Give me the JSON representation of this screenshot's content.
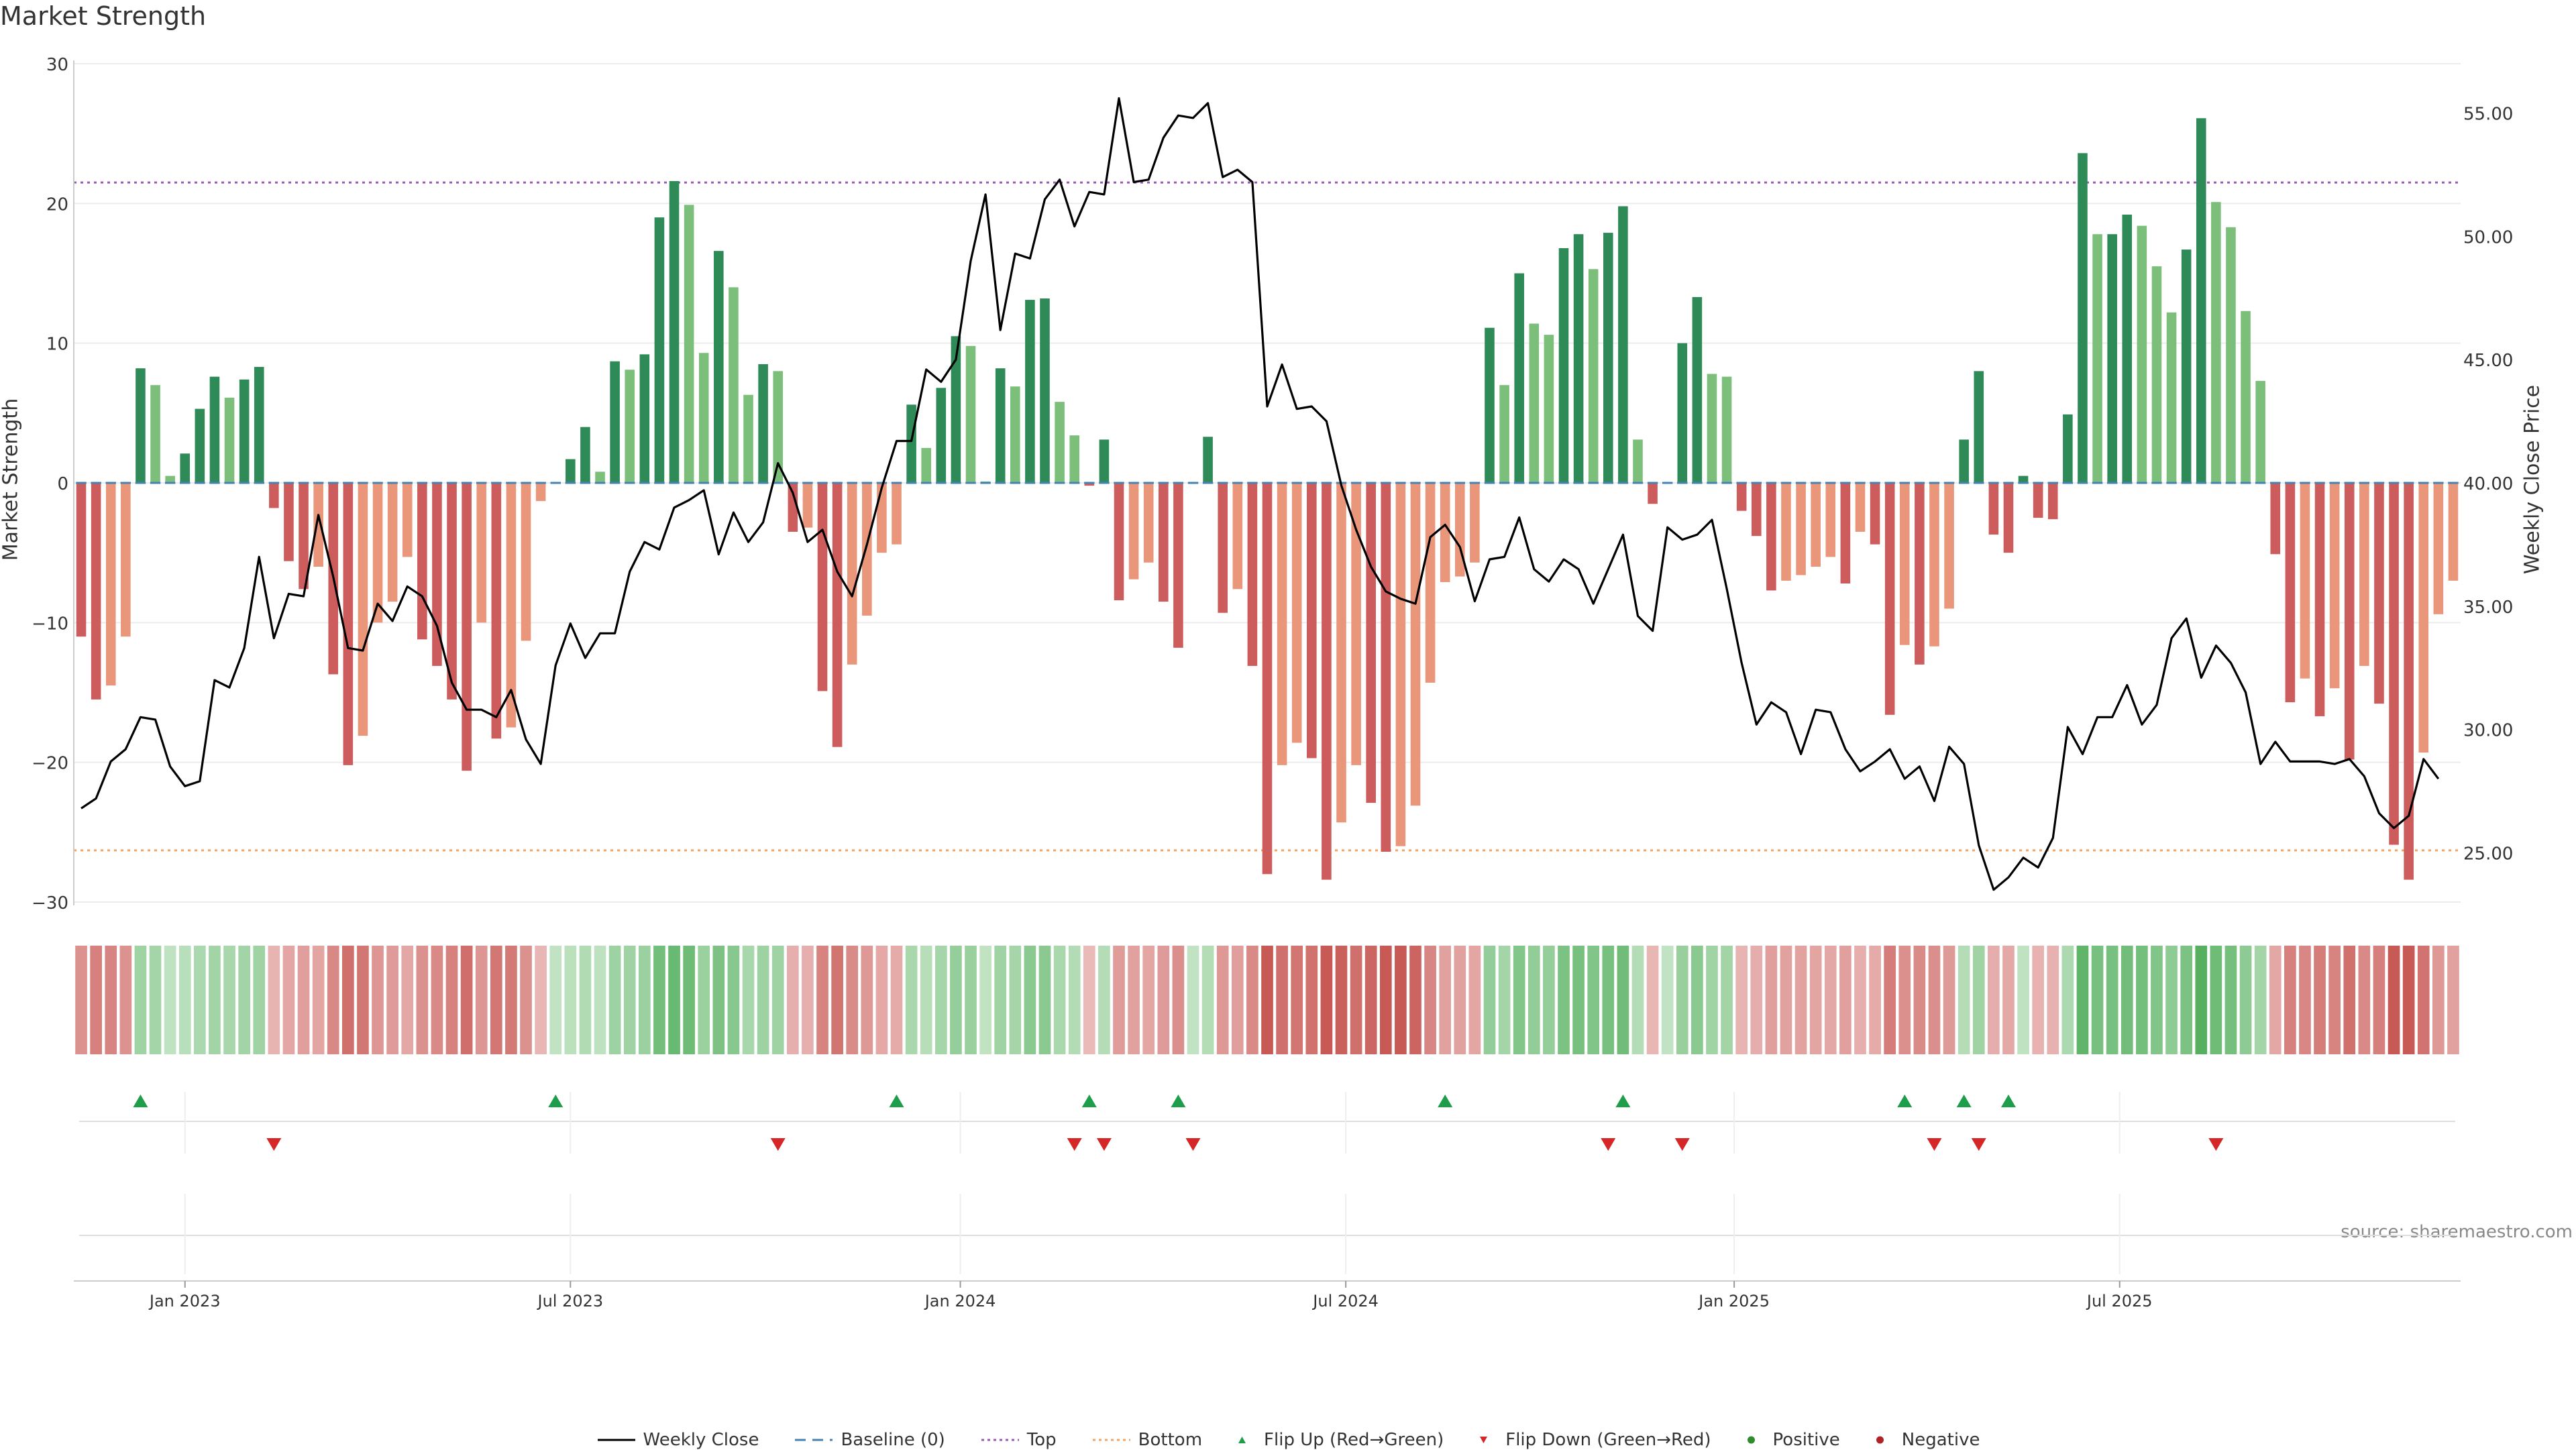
{
  "chart_data": {
    "type": "bar",
    "title": "Market Strength",
    "ylabel": "Market Strength",
    "y2label": "Weekly Close Price",
    "ylim": [
      -30,
      30
    ],
    "y2lim": [
      23,
      57
    ],
    "yticks": [
      -30,
      -20,
      -10,
      0,
      10,
      20,
      30
    ],
    "y2ticks": [
      "25.00",
      "30.00",
      "35.00",
      "40.00",
      "45.00",
      "50.00",
      "55.00"
    ],
    "y2tick_values": [
      25,
      30,
      35,
      40,
      45,
      50,
      55
    ],
    "top_level": 21.5,
    "bottom_level": -26.3,
    "x_ticks": [
      {
        "label": "Jan 2023",
        "week": 7.5
      },
      {
        "label": "Jul 2023",
        "week": 33.5
      },
      {
        "label": "Jan 2024",
        "week": 59.8
      },
      {
        "label": "Jul 2024",
        "week": 85.8
      },
      {
        "label": "Jan 2025",
        "week": 112
      },
      {
        "label": "Jul 2025",
        "week": 138
      }
    ],
    "strength": [
      -11,
      -15.5,
      -14.5,
      -11,
      8.2,
      7,
      0.5,
      2.1,
      5.3,
      7.6,
      6.1,
      7.4,
      8.3,
      -1.8,
      -5.6,
      -7.6,
      -6,
      -13.7,
      -20.2,
      -18.1,
      -10,
      -8.5,
      -5.3,
      -11.2,
      -13.1,
      -15.5,
      -20.6,
      -10,
      -18.3,
      -17.5,
      -11.3,
      -1.3,
      0,
      1.7,
      4,
      0.8,
      8.7,
      8.1,
      9.2,
      19,
      21.6,
      19.9,
      9.3,
      16.6,
      14,
      6.3,
      8.5,
      8,
      -3.5,
      -3.2,
      -14.9,
      -18.9,
      -13,
      -9.5,
      -5,
      -4.4,
      5.6,
      2.5,
      6.8,
      10.5,
      9.8,
      0.1,
      8.2,
      6.9,
      13.1,
      13.2,
      5.8,
      3.4,
      -0.2,
      3.1,
      -8.4,
      -6.9,
      -5.7,
      -8.5,
      -11.8,
      0,
      3.3,
      -9.3,
      -7.6,
      -13.1,
      -28,
      -20.2,
      -18.6,
      -19.7,
      -28.4,
      -24.3,
      -20.2,
      -22.9,
      -26.4,
      -26,
      -23.1,
      -14.3,
      -7.1,
      -6.7,
      -5.7,
      11.1,
      7,
      15,
      11.4,
      10.6,
      16.8,
      17.8,
      15.3,
      17.9,
      19.8,
      3.1,
      -1.5,
      0,
      10,
      13.3,
      7.8,
      7.6,
      -2,
      -3.8,
      -7.7,
      -7,
      -6.6,
      -6,
      -5.3,
      -7.2,
      -3.5,
      -4.4,
      -16.6,
      -11.6,
      -13,
      -11.7,
      -9,
      3.1,
      8,
      -3.7,
      -5,
      0.5,
      -2.5,
      -2.6,
      4.9,
      23.6,
      17.8,
      17.8,
      19.2,
      18.4,
      15.5,
      12.2,
      16.7,
      26.1,
      20.1,
      18.3,
      12.3,
      7.3,
      -5.1,
      -15.7,
      -14,
      -16.7,
      -14.7,
      -19.8,
      -13.1,
      -15.8,
      -25.9,
      -28.4,
      -19.3,
      -9.4,
      -7
    ],
    "close": [
      26.8,
      27.2,
      28.7,
      29.2,
      30.5,
      30.4,
      28.5,
      27.7,
      27.9,
      32,
      31.7,
      33.3,
      37,
      33.7,
      35.5,
      35.4,
      38.7,
      36.2,
      33.3,
      33.2,
      35.1,
      34.4,
      35.8,
      35.4,
      34.2,
      31.9,
      30.8,
      30.8,
      30.5,
      31.6,
      29.6,
      28.6,
      32.6,
      34.3,
      32.9,
      33.9,
      33.9,
      36.4,
      37.6,
      37.3,
      39,
      39.3,
      39.7,
      37.1,
      38.8,
      37.6,
      38.4,
      40.8,
      39.6,
      37.6,
      38.1,
      36.4,
      35.4,
      37.5,
      39.8,
      41.7,
      41.7,
      44.6,
      44.1,
      45,
      49,
      51.7,
      46.2,
      49.3,
      49.1,
      51.5,
      52.3,
      50.4,
      51.8,
      51.7,
      55.6,
      52.2,
      52.3,
      54,
      54.9,
      54.8,
      55.4,
      52.4,
      52.7,
      52.2,
      43.1,
      44.8,
      43,
      43.1,
      42.5,
      39.9,
      38.1,
      36.6,
      35.6,
      35.3,
      35.1,
      37.8,
      38.3,
      37.4,
      35.2,
      36.9,
      37,
      38.6,
      36.5,
      36,
      36.9,
      36.5,
      35.1,
      36.5,
      37.9,
      34.6,
      34,
      38.2,
      37.7,
      37.9,
      38.5,
      35.7,
      32.7,
      30.2,
      31.1,
      30.7,
      29,
      30.8,
      30.7,
      29.2,
      28.3,
      28.7,
      29.2,
      28,
      28.5,
      27.1,
      29.3,
      28.6,
      25.3,
      23.5,
      24,
      24.8,
      24.4,
      25.6,
      30.1,
      29,
      30.5,
      30.5,
      31.8,
      30.2,
      31,
      33.7,
      34.5,
      32.1,
      33.4,
      32.7,
      31.5,
      28.6,
      29.5,
      28.7,
      28.7,
      28.7,
      28.6,
      28.8,
      28.1,
      26.6,
      26,
      26.5,
      28.8,
      28
    ],
    "flip_up_weeks": [
      4,
      32,
      55,
      68,
      74,
      92,
      104,
      123,
      127,
      130
    ],
    "flip_down_weeks": [
      13,
      47,
      67,
      69,
      75,
      103,
      108,
      125,
      128,
      144
    ],
    "legend": [
      "Weekly Close",
      "Baseline (0)",
      "Top",
      "Bottom",
      "Flip Up (Red→Green)",
      "Flip Down (Green→Red)",
      "Positive",
      "Negative"
    ],
    "colors": {
      "pos_dark": "#2e8b57",
      "pos_light": "#7bbf7b",
      "neg_dark": "#cd5c5c",
      "neg_light": "#e9967a",
      "top": "#9b59b6",
      "bottom": "#f4a460",
      "baseline": "#4682b4",
      "flip_up": "#1e9e4a",
      "flip_down": "#d62728",
      "positive_dot": "#2e8b2e",
      "negative_dot": "#b22222",
      "close": "#000000"
    }
  },
  "source": "source: sharemaestro.com"
}
